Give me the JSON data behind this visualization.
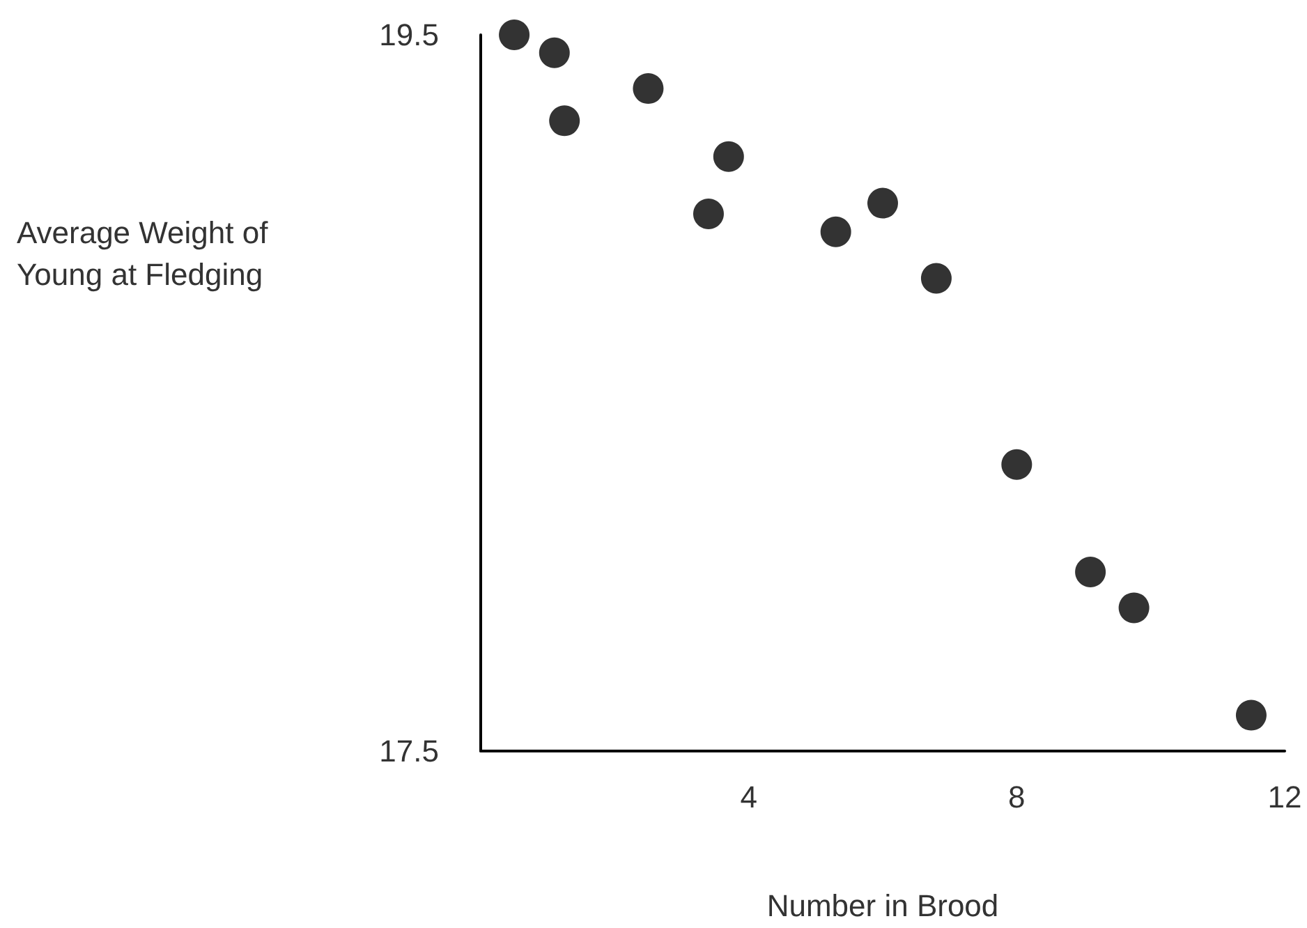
{
  "chart_data": {
    "type": "scatter",
    "xlabel": "Number in Brood",
    "ylabel": "Average Weight of Young at Fledging",
    "x": [
      0.5,
      1.1,
      1.25,
      2.5,
      3.7,
      3.4,
      5.3,
      6.0,
      6.8,
      8.0,
      9.1,
      9.75,
      11.5
    ],
    "series": [
      {
        "color": "#000000",
        "values": [
          19.5,
          19.45,
          19.26,
          19.35,
          19.16,
          19.0,
          18.95,
          19.03,
          18.82,
          18.3,
          18.0,
          17.9,
          17.6
        ]
      }
    ],
    "xlim": [
      0,
      12
    ],
    "xticks": [
      4,
      8,
      12
    ],
    "ylim": [
      17.5,
      19.5
    ],
    "yticks": [
      17.5,
      19.5
    ],
    "grid": false,
    "marker": "circle"
  }
}
